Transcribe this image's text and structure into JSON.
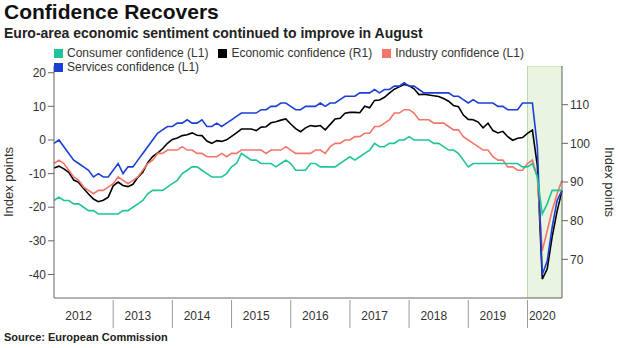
{
  "chart_data": {
    "type": "line",
    "title": "Confidence Recovers",
    "subtitle": "Euro-area economic sentiment continued to improve in August",
    "source": "Source: European Commission",
    "y_label": "Index points",
    "y2_label": "Index points",
    "categories": [
      null,
      null,
      null,
      null,
      null,
      "2012",
      null,
      null,
      null,
      null,
      null,
      null,
      null,
      null,
      null,
      null,
      null,
      "2013",
      null,
      null,
      null,
      null,
      null,
      null,
      null,
      null,
      null,
      null,
      null,
      "2014",
      null,
      null,
      null,
      null,
      null,
      null,
      null,
      null,
      null,
      null,
      null,
      "2015",
      null,
      null,
      null,
      null,
      null,
      null,
      null,
      null,
      null,
      null,
      null,
      "2016",
      null,
      null,
      null,
      null,
      null,
      null,
      null,
      null,
      null,
      null,
      null,
      "2017",
      null,
      null,
      null,
      null,
      null,
      null,
      null,
      null,
      null,
      null,
      null,
      "2018",
      null,
      null,
      null,
      null,
      null,
      null,
      null,
      null,
      null,
      null,
      null,
      "2019",
      null,
      null,
      null,
      null,
      null,
      null,
      null,
      null,
      null,
      "2020",
      null,
      null,
      null,
      null
    ],
    "ylim": [
      -47,
      22
    ],
    "yticks": [
      -40,
      -30,
      -20,
      -10,
      0,
      10,
      20
    ],
    "y2lim": [
      60,
      120
    ],
    "y2ticks": [
      70,
      80,
      90,
      100,
      110
    ],
    "grid": false,
    "legend": "top",
    "highlight": {
      "from": 96,
      "to": 103,
      "color": "#eaf5e1"
    },
    "series": [
      {
        "name": "Economic confidence (R1)",
        "color": "#000000",
        "axis": "y2",
        "values": [
          93.6,
          94.1,
          93.4,
          92.5,
          90.5,
          89.9,
          88.3,
          86.9,
          85.6,
          84.9,
          85.3,
          86.1,
          89.0,
          90.0,
          89.1,
          88.8,
          89.4,
          91.2,
          92.5,
          95.0,
          96.6,
          97.5,
          98.6,
          100.0,
          101.0,
          101.4,
          102.0,
          102.2,
          102.7,
          102.1,
          102.0,
          100.6,
          100.0,
          100.7,
          100.5,
          100.9,
          101.8,
          102.7,
          103.7,
          103.7,
          103.7,
          103.3,
          104.2,
          104.3,
          105.3,
          105.6,
          106.0,
          106.3,
          105.0,
          103.8,
          103.0,
          104.0,
          104.6,
          104.4,
          104.6,
          103.5,
          104.9,
          106.3,
          106.5,
          107.8,
          108.0,
          108.0,
          107.9,
          109.6,
          109.2,
          111.1,
          111.2,
          111.9,
          113.0,
          114.0,
          114.6,
          115.2,
          114.9,
          114.1,
          112.6,
          112.7,
          112.5,
          112.3,
          112.1,
          111.6,
          110.9,
          109.8,
          109.5,
          107.3,
          106.2,
          106.1,
          105.5,
          104.0,
          105.2,
          103.3,
          102.7,
          103.1,
          101.7,
          100.8,
          101.3,
          101.5,
          102.6,
          103.4,
          94.2,
          64.9,
          67.5,
          75.8,
          82.4,
          87.7
        ]
      },
      {
        "name": "Industry confidence (L1)",
        "color": "#f4756b",
        "values": [
          -7,
          -6,
          -7,
          -9,
          -11,
          -12,
          -14,
          -15,
          -16,
          -15,
          -15,
          -14,
          -13,
          -11,
          -12,
          -13,
          -12,
          -11,
          -9,
          -7,
          -6,
          -4,
          -4,
          -3,
          -3,
          -3,
          -2,
          -3,
          -3,
          -4,
          -4,
          -5,
          -5,
          -5,
          -4,
          -5,
          -4,
          -4,
          -3,
          -3,
          -3,
          -3,
          -3,
          -4,
          -3,
          -3,
          -3,
          -2,
          -3,
          -4,
          -4,
          -4,
          -4,
          -3,
          -3,
          -4,
          -2,
          -1,
          -1,
          0,
          0,
          1,
          1,
          2,
          2,
          4,
          4,
          5,
          6,
          8,
          8,
          9,
          9,
          8,
          6,
          6,
          6,
          5,
          5,
          5,
          4,
          3,
          3,
          1,
          0,
          -1,
          -2,
          -3,
          -3,
          -5,
          -6,
          -6,
          -8,
          -8,
          -9,
          -9,
          -7,
          -6,
          -11,
          -33,
          -27,
          -21,
          -16,
          -12
        ]
      },
      {
        "name": "Services confidence (L1)",
        "color": "#1a3fd6",
        "values": [
          -1,
          0,
          -2,
          -4,
          -6,
          -7,
          -8,
          -9,
          -11,
          -10,
          -11,
          -11,
          -9,
          -7,
          -10,
          -8,
          -8,
          -6,
          -4,
          -2,
          0,
          2,
          3,
          4,
          4,
          5,
          5,
          6,
          5,
          5,
          6,
          4,
          4,
          5,
          4,
          5,
          6,
          7,
          8,
          8,
          8,
          8,
          9,
          9,
          10,
          10,
          11,
          11,
          10,
          9,
          9,
          10,
          10,
          10,
          11,
          10,
          11,
          11,
          12,
          13,
          13,
          13,
          14,
          14,
          14,
          15,
          14,
          15,
          15,
          16,
          16,
          17,
          16,
          16,
          15,
          14,
          14,
          14,
          14,
          14,
          14,
          13,
          13,
          12,
          11,
          12,
          11,
          11,
          11,
          11,
          10,
          10,
          9,
          9,
          9,
          11,
          11,
          11,
          -2,
          -40,
          -36,
          -26,
          -18,
          -15
        ]
      },
      {
        "name": "Consumer confidence (L1)",
        "color": "#20c49a",
        "values": [
          -18,
          -17,
          -18,
          -18,
          -19,
          -19,
          -20,
          -21,
          -21,
          -22,
          -22,
          -22,
          -22,
          -22,
          -21,
          -21,
          -20,
          -19,
          -18,
          -16,
          -15,
          -15,
          -15,
          -14,
          -13,
          -12,
          -10,
          -9,
          -8,
          -8,
          -9,
          -10,
          -11,
          -11,
          -11,
          -10,
          -8,
          -7,
          -4,
          -5,
          -6,
          -6,
          -7,
          -7,
          -7,
          -8,
          -7,
          -6,
          -7,
          -9,
          -9,
          -9,
          -7,
          -7,
          -8,
          -8,
          -8,
          -8,
          -7,
          -6,
          -5,
          -6,
          -5,
          -4,
          -3,
          -1,
          -2,
          -2,
          -1,
          -1,
          0,
          0,
          1,
          0,
          0,
          0,
          0,
          -1,
          -1,
          -2,
          -3,
          -3,
          -4,
          -6,
          -8,
          -7,
          -7,
          -7,
          -7,
          -7,
          -7,
          -7,
          -7,
          -7,
          -7,
          -8,
          -8,
          -7,
          -11,
          -22,
          -19,
          -15,
          -15,
          -15
        ]
      }
    ]
  }
}
